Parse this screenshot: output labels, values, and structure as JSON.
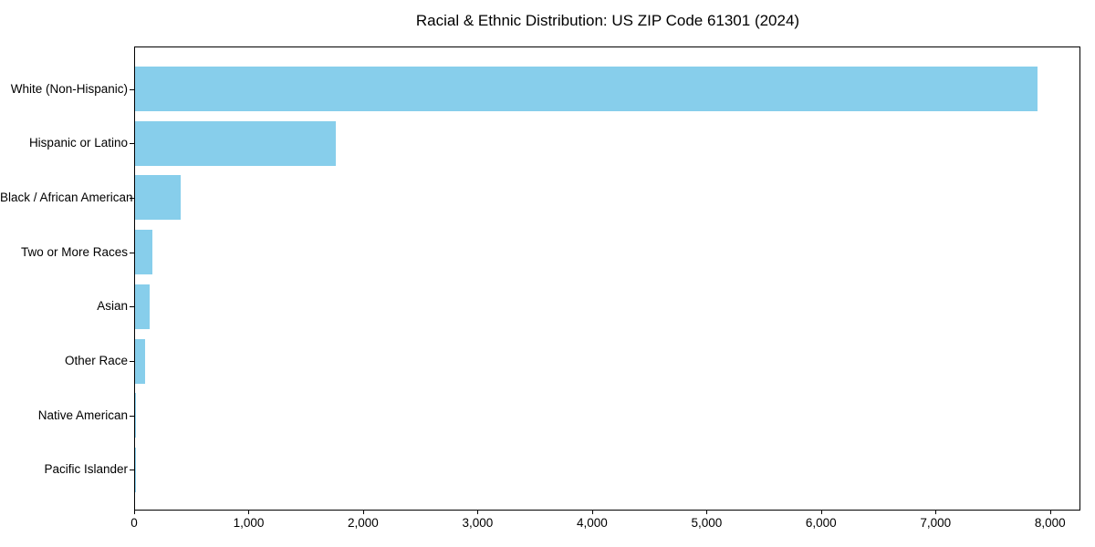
{
  "chart_data": {
    "type": "bar",
    "orientation": "horizontal",
    "title": "Racial & Ethnic Distribution: US ZIP Code 61301 (2024)",
    "categories": [
      "White (Non-Hispanic)",
      "Hispanic or Latino",
      "Black / African American",
      "Two or More Races",
      "Asian",
      "Other Race",
      "Native American",
      "Pacific Islander"
    ],
    "values": [
      7885,
      1755,
      400,
      155,
      130,
      90,
      5,
      2
    ],
    "xlabel": "",
    "ylabel": "",
    "xlim": [
      0,
      8265
    ],
    "xticks": [
      0,
      1000,
      2000,
      3000,
      4000,
      5000,
      6000,
      7000,
      8000
    ],
    "xtick_labels": [
      "0",
      "1,000",
      "2,000",
      "3,000",
      "4,000",
      "5,000",
      "6,000",
      "7,000",
      "8,000"
    ],
    "grid": false,
    "legend": null,
    "colors": {
      "bar": "#87CEEB",
      "spine": "#000000",
      "text": "#000000",
      "background": "#FFFFFF"
    }
  }
}
